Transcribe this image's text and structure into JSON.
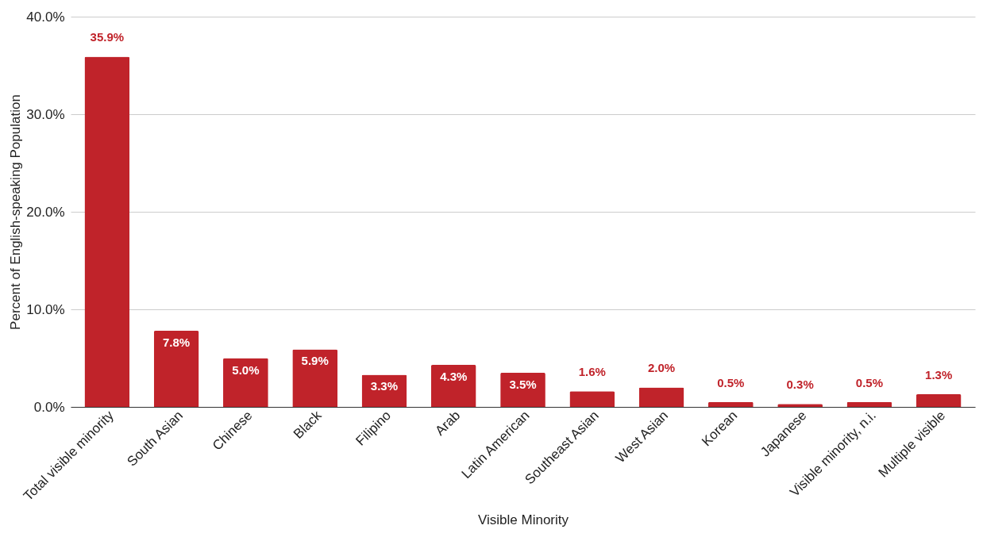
{
  "chart_data": {
    "type": "bar",
    "xlabel": "Visible Minority",
    "ylabel": "Percent of English-speaking Population",
    "categories": [
      "Total visible minority",
      "South Asian",
      "Chinese",
      "Black",
      "Filipino",
      "Arab",
      "Latin American",
      "Southeast Asian",
      "West Asian",
      "Korean",
      "Japanese",
      "Visible minority, n.i.",
      "Multiple visible"
    ],
    "values": [
      35.9,
      7.8,
      5.0,
      5.9,
      3.3,
      4.3,
      3.5,
      1.6,
      2.0,
      0.5,
      0.3,
      0.5,
      1.3
    ],
    "value_labels": [
      "35.9%",
      "7.8%",
      "5.0%",
      "5.9%",
      "3.3%",
      "4.3%",
      "3.5%",
      "1.6%",
      "2.0%",
      "0.5%",
      "0.3%",
      "0.5%",
      "1.3%"
    ],
    "color": "#c0232a",
    "ylim": [
      0,
      40
    ],
    "yticks": [
      {
        "value": 0,
        "label": "0.0%"
      },
      {
        "value": 10,
        "label": "10.0%"
      },
      {
        "value": 20,
        "label": "20.0%"
      },
      {
        "value": 30,
        "label": "30.0%"
      },
      {
        "value": 40,
        "label": "40.0%"
      }
    ],
    "grid": "y"
  }
}
